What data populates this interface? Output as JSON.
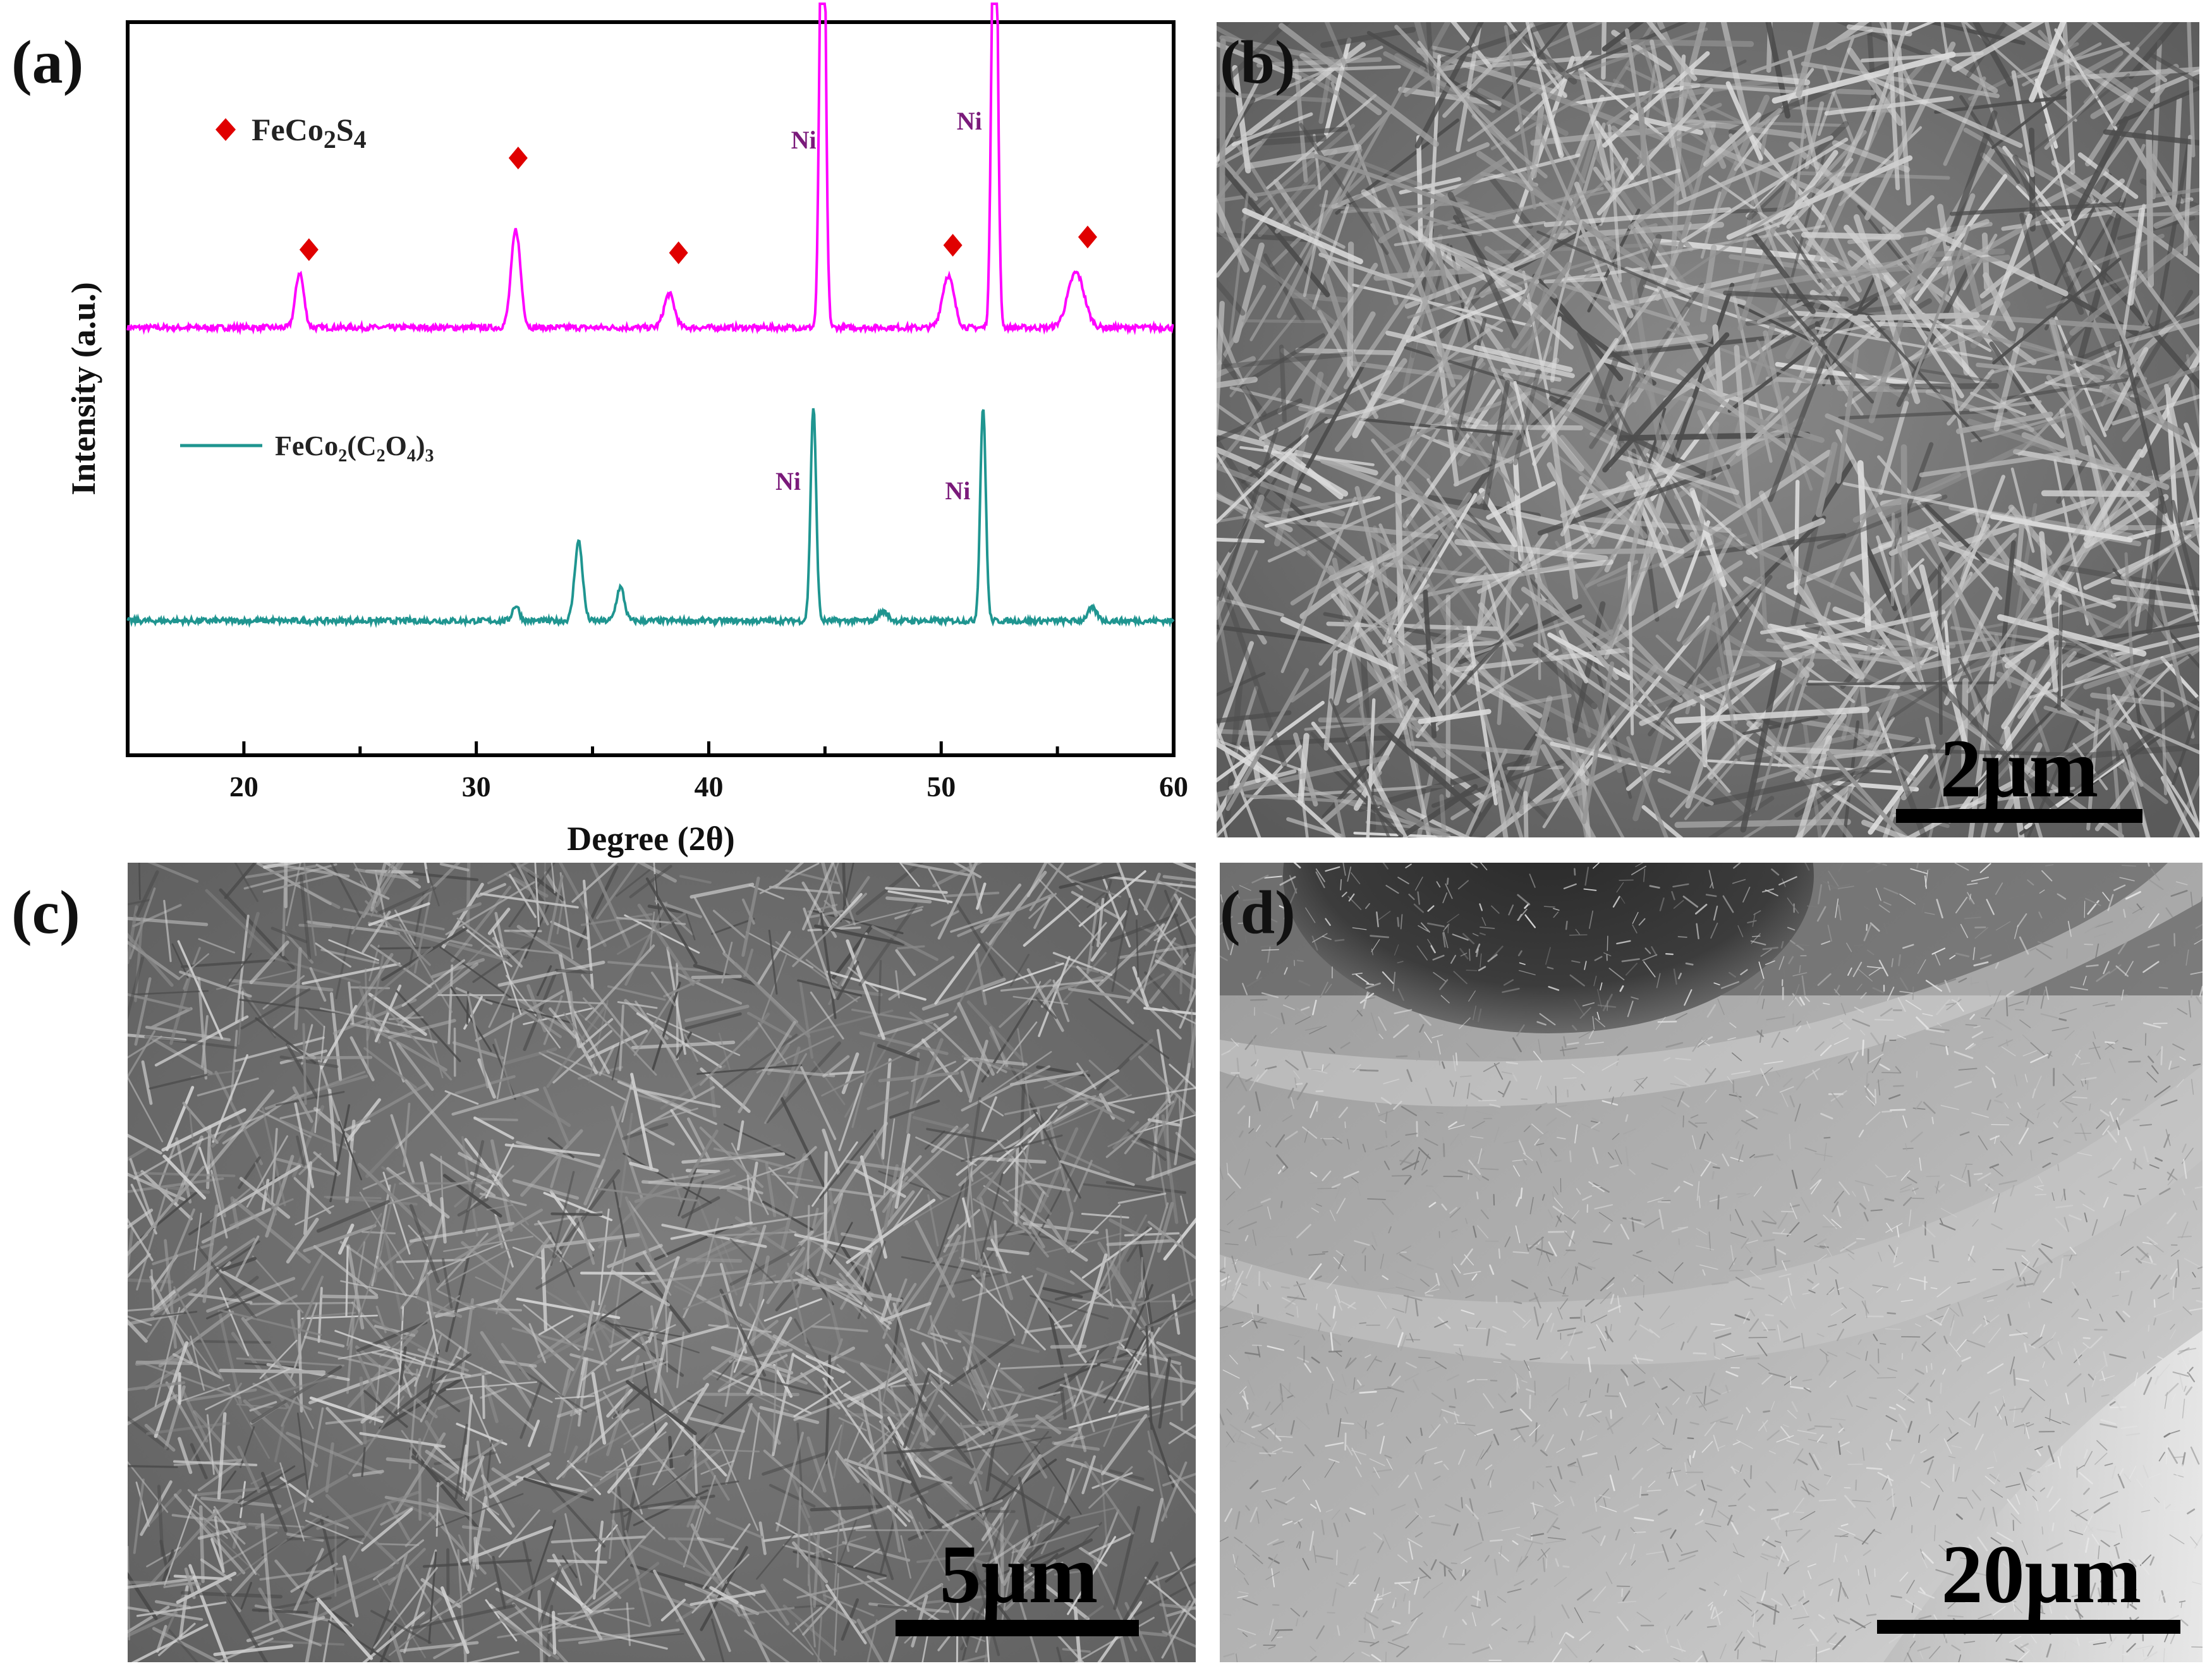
{
  "panels": {
    "a": {
      "label": "(a)"
    },
    "b": {
      "label": "(b)",
      "scale_bar": "2μm"
    },
    "c": {
      "label": "(c)",
      "scale_bar": "5μm"
    },
    "d": {
      "label": "(d)",
      "scale_bar": "20μm"
    }
  },
  "chart_data": {
    "type": "line",
    "xlabel": "Degree (2θ)",
    "ylabel": "Intensity (a.u.)",
    "xlim": [
      15,
      60
    ],
    "x_ticks": [
      20,
      30,
      40,
      50,
      60
    ],
    "series": [
      {
        "name": "FeCo2S4",
        "color": "#ff00ff",
        "marker": "red-diamond",
        "baseline_au": 7.0,
        "peaks_2theta": [
          22.4,
          31.7,
          38.3,
          44.9,
          50.3,
          52.3,
          55.8
        ],
        "peak_labels": [
          {
            "x": 44.9,
            "text": "Ni"
          },
          {
            "x": 52.3,
            "text": "Ni"
          }
        ],
        "phase_marker_positions": [
          22.8,
          31.8,
          38.7,
          50.5,
          56.3
        ]
      },
      {
        "name": "FeCo2(C2O4)3",
        "color": "#1f9590",
        "baseline_au": 2.2,
        "peaks_2theta": [
          31.7,
          34.4,
          36.2,
          44.5,
          47.5,
          51.8,
          56.5
        ],
        "peak_labels": [
          {
            "x": 44.5,
            "text": "Ni"
          },
          {
            "x": 51.8,
            "text": "Ni"
          }
        ]
      }
    ],
    "legend": [
      {
        "text": "FeCo",
        "sub1": "2",
        "text2": "S",
        "sub2": "4",
        "symbol": "diamond",
        "color": "#e00000"
      },
      {
        "text": "FeCo",
        "sub1": "2",
        "text2": "(C",
        "sub2": "2",
        "text3": "O",
        "sub3": "4",
        "text4": ")",
        "sub4": "3",
        "symbol": "line",
        "color": "#1f9590"
      }
    ]
  },
  "colors": {
    "series1": "#ff00ff",
    "series2": "#1f9590",
    "marker": "#e00000",
    "ni_label": "#7a1a7a"
  }
}
